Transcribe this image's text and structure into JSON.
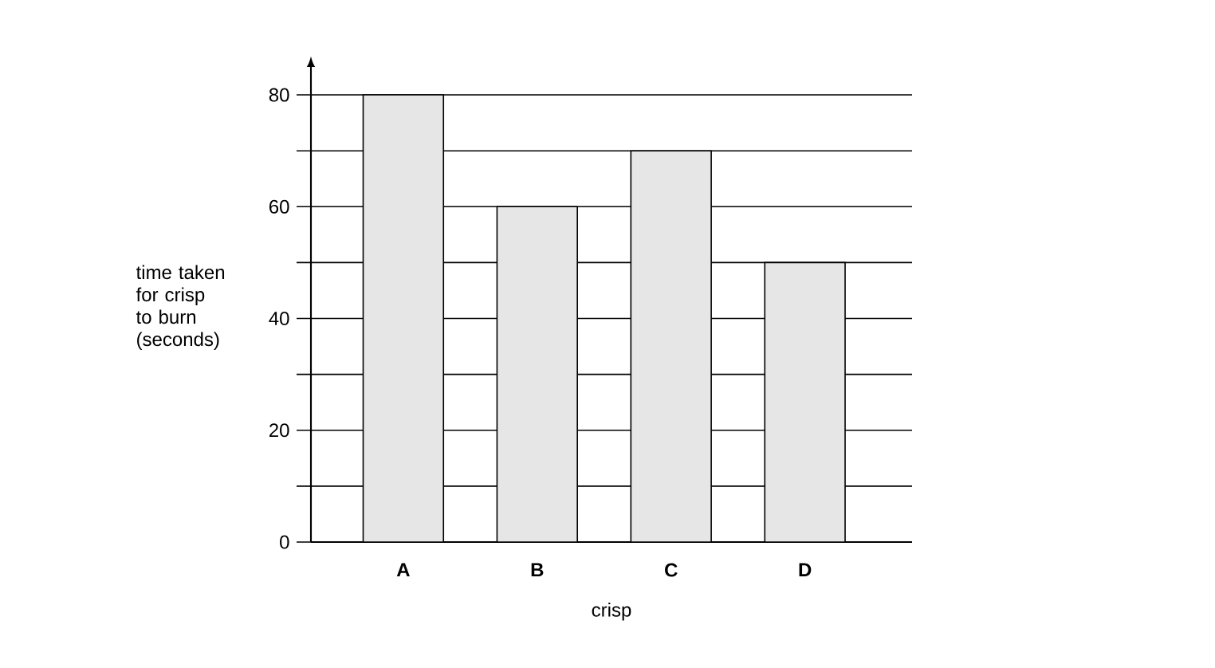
{
  "chart_data": {
    "type": "bar",
    "categories": [
      "A",
      "B",
      "C",
      "D"
    ],
    "values": [
      80,
      60,
      70,
      50
    ],
    "color": "#e6e6e6",
    "xlabel": "crisp",
    "ylabel": "time taken for crisp to burn (seconds)",
    "ylim": [
      0,
      85
    ],
    "yticks": [
      0,
      {
        "value": 10,
        "label": null
      },
      20,
      {
        "value": 30,
        "label": null
      },
      40,
      {
        "value": 50,
        "label": null
      },
      60,
      {
        "value": 70,
        "label": null
      },
      80
    ],
    "grid": "y"
  }
}
